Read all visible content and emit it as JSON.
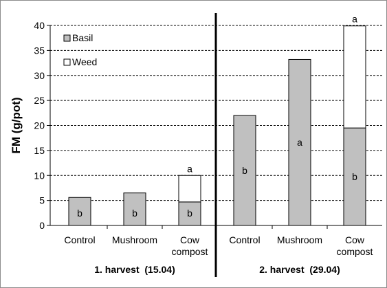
{
  "chart_data": {
    "type": "bar",
    "stacked": true,
    "ylabel": "FM (g/pot)",
    "xlabel": "",
    "ylim": [
      0,
      40
    ],
    "yticks": [
      "0",
      "5",
      "10",
      "15",
      "20",
      "25",
      "30",
      "35",
      "40"
    ],
    "grid": "horizontal dashed",
    "legend_position": "top-left",
    "categories": [
      [
        "Control"
      ],
      [
        "Mushroom"
      ],
      [
        "Cow",
        "compost"
      ],
      [
        "Control"
      ],
      [
        "Mushroom"
      ],
      [
        "Cow",
        "compost"
      ]
    ],
    "groups": [
      {
        "label": "1. harvest  (15.04)",
        "categories": [
          0,
          1,
          2
        ]
      },
      {
        "label": "2. harvest  (29.04)",
        "categories": [
          3,
          4,
          5
        ]
      }
    ],
    "series": [
      {
        "name": "Basil",
        "color": "#c0c0c0",
        "values": [
          5.6,
          6.5,
          4.7,
          22.0,
          33.2,
          19.5
        ],
        "labels": [
          "b",
          "b",
          "b",
          "b",
          "a",
          "b"
        ]
      },
      {
        "name": "Weed",
        "color": "#ffffff",
        "values": [
          0,
          0,
          5.3,
          0,
          0,
          20.4
        ],
        "labels": [
          "",
          "",
          "",
          "",
          "",
          ""
        ]
      }
    ],
    "total_labels": [
      "",
      "",
      "a",
      "",
      "",
      "a"
    ]
  }
}
